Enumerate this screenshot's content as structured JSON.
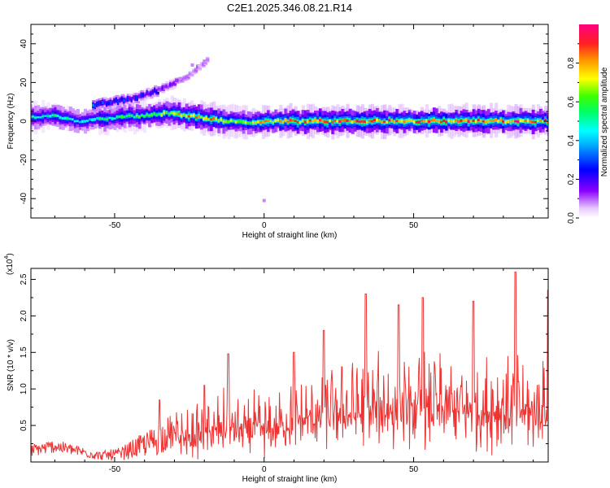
{
  "figure": {
    "title": "C2E1.2025.346.08.21.R14"
  },
  "chart_data": [
    {
      "type": "heatmap",
      "xlabel": "Height of straight line (km)",
      "ylabel": "Frequency (Hz)",
      "xlim": [
        -78,
        95
      ],
      "ylim": [
        -50,
        50
      ],
      "x_ticks": [
        -50,
        0,
        50
      ],
      "y_ticks": [
        -40,
        -20,
        0,
        20,
        40
      ],
      "colorbar": {
        "label": "Normalized spectral amplitude",
        "range": [
          0,
          1
        ],
        "ticks": [
          "0.0",
          "0.2",
          "0.4",
          "0.6",
          "0.8"
        ],
        "colors": [
          "#ffffff",
          "#8a00ff",
          "#0000ff",
          "#00ffff",
          "#00ff00",
          "#ffff00",
          "#ff8000",
          "#ff0040"
        ]
      },
      "ridge": {
        "description_values": "dominant frequency (Hz) vs height (km)",
        "x": [
          -78,
          -70,
          -62,
          -55,
          -48,
          -40,
          -32,
          -25,
          -18,
          -12,
          -5,
          0,
          10,
          20,
          30,
          40,
          50,
          60,
          70,
          80,
          90,
          95
        ],
        "y": [
          2,
          3,
          0,
          1,
          2,
          3,
          4,
          3,
          1,
          0,
          -1,
          0,
          0,
          0,
          0,
          0,
          0,
          0,
          0,
          0,
          0,
          0
        ],
        "peak_amplitude": [
          0.5,
          0.55,
          0.5,
          0.55,
          0.6,
          0.65,
          0.8,
          0.9,
          0.85,
          0.7,
          0.75,
          0.85,
          0.9,
          0.95,
          0.95,
          0.95,
          0.95,
          0.95,
          0.95,
          0.95,
          0.95,
          0.9
        ]
      },
      "branch": {
        "description_values": "secondary rising frequency branch",
        "x": [
          -57,
          -50,
          -43,
          -37,
          -31,
          -25,
          -19
        ],
        "y": [
          8,
          10,
          12,
          15,
          19,
          24,
          31
        ],
        "peak_amplitude": [
          0.3,
          0.28,
          0.25,
          0.22,
          0.15,
          0.1,
          0.08
        ]
      }
    },
    {
      "type": "line",
      "xlabel": "Height of straight line (km)",
      "ylabel": "SNR (10 * v/v)",
      "y_multiplier": "(x10",
      "y_multiplier_exp": "4",
      "y_multiplier_close": ")",
      "xlim": [
        -78,
        95
      ],
      "ylim": [
        0,
        2.65
      ],
      "x_ticks": [
        -50,
        0,
        50
      ],
      "y_ticks": [
        0.5,
        1.0,
        1.5,
        2.0,
        2.5
      ],
      "y_tick_labels": [
        "0.5",
        "1.0",
        "1.5",
        "2.0",
        "2.5"
      ],
      "color": "#ee3333",
      "series": [
        {
          "x": [
            -78,
            -70,
            -62,
            -55,
            -48,
            -42,
            -36,
            -32,
            -26,
            -22,
            -18,
            -14,
            -10,
            -6,
            -2,
            2,
            6,
            10,
            14,
            18,
            22,
            26,
            30,
            34,
            38,
            42,
            46,
            50,
            54,
            58,
            62,
            66,
            70,
            74,
            78,
            82,
            86,
            90,
            95
          ],
          "y": [
            0.2,
            0.3,
            0.2,
            0.1,
            0.12,
            0.25,
            0.35,
            0.5,
            0.5,
            0.55,
            0.6,
            0.7,
            0.7,
            0.65,
            0.7,
            0.65,
            0.8,
            0.9,
            0.9,
            0.95,
            1.0,
            1.05,
            1.05,
            1.1,
            1.1,
            1.15,
            1.1,
            1.1,
            1.15,
            1.1,
            1.15,
            1.1,
            1.1,
            1.1,
            1.1,
            1.05,
            1.1,
            1.05,
            1.1
          ],
          "amplitude": [
            0.15,
            0.15,
            0.12,
            0.1,
            0.15,
            0.25,
            0.35,
            0.4,
            0.45,
            0.5,
            0.55,
            0.65,
            0.65,
            0.6,
            0.6,
            0.6,
            0.6,
            0.65,
            0.7,
            0.7,
            0.75,
            0.8,
            0.8,
            0.9,
            0.9,
            0.9,
            0.85,
            0.85,
            0.9,
            0.9,
            0.9,
            0.85,
            0.85,
            0.9,
            0.95,
            0.95,
            0.9,
            0.85,
            0.85
          ],
          "max_points": [
            [
              -35,
              0.85
            ],
            [
              -20,
              1.05
            ],
            [
              -12,
              1.48
            ],
            [
              10,
              1.5
            ],
            [
              20,
              1.8
            ],
            [
              34,
              2.3
            ],
            [
              45,
              2.15
            ],
            [
              53,
              2.25
            ],
            [
              70,
              2.2
            ],
            [
              84,
              2.6
            ],
            [
              95,
              2.35
            ]
          ]
        }
      ]
    }
  ]
}
